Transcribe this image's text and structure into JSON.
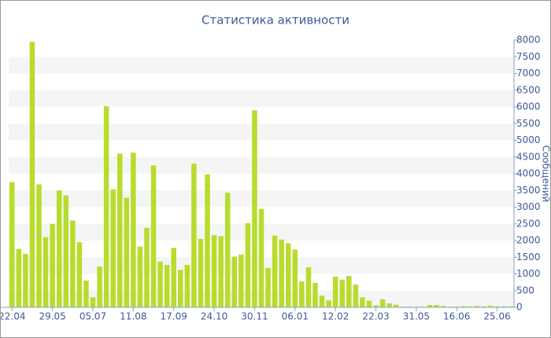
{
  "chart_data": {
    "type": "bar",
    "title": "Статистика активности",
    "y_axis_label": "Сообщений",
    "categories": [
      "22.04",
      null,
      null,
      null,
      null,
      null,
      "29.05",
      null,
      null,
      null,
      null,
      null,
      "05.07",
      null,
      null,
      null,
      null,
      null,
      "11.08",
      null,
      null,
      null,
      null,
      null,
      "17.09",
      null,
      null,
      null,
      null,
      null,
      "24.10",
      null,
      null,
      null,
      null,
      null,
      "30.11",
      null,
      null,
      null,
      null,
      null,
      "06.01",
      null,
      null,
      null,
      null,
      null,
      "12.02",
      null,
      null,
      null,
      null,
      null,
      "22.03",
      null,
      null,
      null,
      null,
      null,
      "31.05",
      null,
      null,
      null,
      null,
      null,
      "16.06",
      null,
      null,
      null,
      null,
      null,
      "25.06",
      null,
      null
    ],
    "values": [
      3750,
      1750,
      1600,
      7950,
      3680,
      2100,
      2500,
      3500,
      3350,
      2600,
      1950,
      800,
      300,
      1220,
      6020,
      3530,
      4600,
      3280,
      4630,
      1820,
      2380,
      4250,
      1370,
      1270,
      1780,
      1120,
      1270,
      4300,
      2050,
      3980,
      2160,
      2130,
      3430,
      1520,
      1580,
      2520,
      5900,
      2950,
      1180,
      2150,
      2030,
      1920,
      1730,
      780,
      1200,
      730,
      350,
      210,
      920,
      830,
      940,
      680,
      300,
      200,
      60,
      240,
      120,
      80,
      20,
      20,
      20,
      20,
      70,
      70,
      40,
      20,
      20,
      30,
      30,
      40,
      30,
      50,
      30,
      30,
      30
    ],
    "color": "#b8dc2e",
    "ylim": [
      0,
      8000
    ],
    "yticks": [
      0,
      500,
      1000,
      1500,
      2000,
      2500,
      3000,
      3500,
      4000,
      4500,
      5000,
      5500,
      6000,
      6500,
      7000,
      7500,
      8000
    ],
    "grid": true
  }
}
